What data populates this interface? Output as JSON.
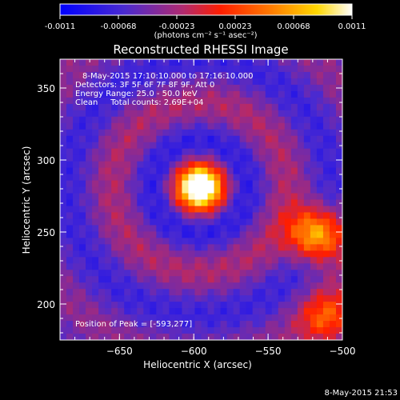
{
  "colorbar": {
    "ticks": [
      "-0.0011",
      "-0.00068",
      "-0.00023",
      "0.00023",
      "0.00068",
      "0.0011"
    ],
    "unit_label": "(photons cm⁻² s⁻¹ asec⁻²)",
    "colors": [
      "#0000ff",
      "#6030c0",
      "#c03060",
      "#ff2000",
      "#ff7000",
      "#ffe000",
      "#ffffff"
    ]
  },
  "plot": {
    "title": "Reconstructed RHESSI Image",
    "header_lines": [
      "8-May-2015 17:10:10.000 to 17:16:10.000",
      "Detectors: 3F 5F 6F 7F 8F 9F, Att 0",
      "Energy Range: 25.0 - 50.0 keV",
      "Clean     Total counts: 2.69E+04"
    ],
    "peak_label": "Position of Peak = [-593,277]",
    "footer_timestamp": "8-May-2015 21:53"
  },
  "chart_data": {
    "type": "heatmap",
    "title": "Reconstructed RHESSI Image",
    "xlabel": "Heliocentric X (arcsec)",
    "ylabel": "Heliocentric Y (arcsec)",
    "xlim": [
      -690,
      -500
    ],
    "ylim": [
      175,
      370
    ],
    "xticks": [
      -650,
      -600,
      -550,
      -500
    ],
    "yticks": [
      200,
      250,
      300,
      350
    ],
    "color_scale_range": [
      -0.0011,
      0.0011
    ],
    "peak_position": [
      -593,
      277
    ],
    "sources": [
      {
        "x": -596,
        "y": 281,
        "relative_intensity": 1.0
      },
      {
        "x": -517,
        "y": 248,
        "relative_intensity": 0.85
      },
      {
        "x": -510,
        "y": 190,
        "relative_intensity": 0.45
      }
    ]
  }
}
